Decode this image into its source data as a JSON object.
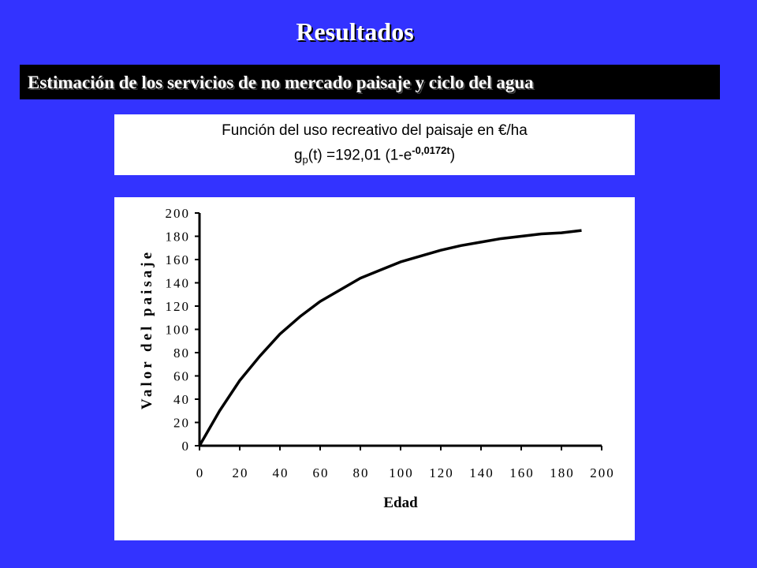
{
  "slide": {
    "title": "Resultados",
    "subtitle": "Estimación de los servicios de no mercado paisaje y ciclo del agua",
    "formula_caption": "Función del uso recreativo del paisaje en €/ha",
    "formula": {
      "base": "g",
      "sub": "p",
      "body": "(t) =192,01 (1-e",
      "sup": "-0,0172t",
      "end": ")"
    }
  },
  "chart_data": {
    "type": "line",
    "x_label": "Edad",
    "y_label": "Valor del paisaje",
    "x": [
      0,
      10,
      20,
      30,
      40,
      50,
      60,
      70,
      80,
      90,
      100,
      110,
      120,
      130,
      140,
      150,
      160,
      170,
      180,
      190
    ],
    "series": [
      {
        "color": "#000000",
        "values": [
          0,
          30,
          56,
          77,
          96,
          111,
          124,
          134,
          144,
          151,
          158,
          163,
          168,
          172,
          175,
          178,
          180,
          182,
          183,
          185
        ]
      }
    ],
    "xlim": [
      0,
      200
    ],
    "xticks": [
      0,
      20,
      40,
      60,
      80,
      100,
      120,
      140,
      160,
      180,
      200
    ],
    "ylim": [
      0,
      200
    ],
    "yticks": [
      0,
      20,
      40,
      60,
      80,
      100,
      120,
      140,
      160,
      180,
      200
    ],
    "grid": false
  }
}
